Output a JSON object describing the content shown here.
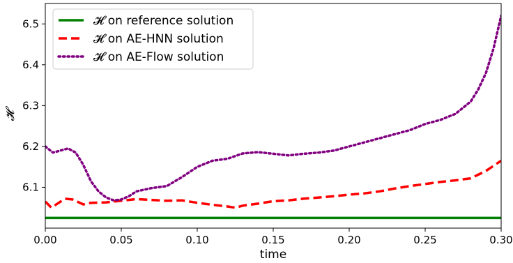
{
  "chart_data": {
    "type": "line",
    "title": "",
    "xlabel": "time",
    "ylabel": "𝓗",
    "xlim": [
      0.0,
      0.3
    ],
    "ylim": [
      6.0,
      6.55
    ],
    "xticks": [
      0.0,
      0.05,
      0.1,
      0.15,
      0.2,
      0.25,
      0.3
    ],
    "xtick_labels": [
      "0.00",
      "0.05",
      "0.10",
      "0.15",
      "0.20",
      "0.25",
      "0.30"
    ],
    "yticks": [
      6.1,
      6.2,
      6.3,
      6.4,
      6.5
    ],
    "ytick_labels": [
      "6.1",
      "6.2",
      "6.3",
      "6.4",
      "6.5"
    ],
    "grid": false,
    "legend_position": "top-left",
    "series": [
      {
        "name": "𝓗 on reference solution",
        "color": "#008000",
        "style": "solid",
        "x": [
          0.0,
          0.3
        ],
        "y": [
          6.025,
          6.025
        ]
      },
      {
        "name": "𝓗 on AE-HNN solution",
        "color": "#ff0000",
        "style": "dashed",
        "x": [
          0.0,
          0.004,
          0.008,
          0.013,
          0.018,
          0.025,
          0.03,
          0.04,
          0.05,
          0.06,
          0.07,
          0.08,
          0.09,
          0.1,
          0.11,
          0.12,
          0.125,
          0.13,
          0.14,
          0.15,
          0.16,
          0.17,
          0.18,
          0.19,
          0.2,
          0.21,
          0.22,
          0.23,
          0.24,
          0.25,
          0.26,
          0.27,
          0.28,
          0.29,
          0.3
        ],
        "y": [
          6.065,
          6.05,
          6.06,
          6.072,
          6.07,
          6.058,
          6.062,
          6.063,
          6.067,
          6.071,
          6.069,
          6.067,
          6.068,
          6.062,
          6.057,
          6.053,
          6.05,
          6.055,
          6.06,
          6.066,
          6.068,
          6.072,
          6.075,
          6.078,
          6.082,
          6.085,
          6.09,
          6.097,
          6.103,
          6.108,
          6.113,
          6.117,
          6.122,
          6.14,
          6.165
        ]
      },
      {
        "name": "𝓗 on AE-Flow solution",
        "color": "#800080",
        "style": "dotted",
        "x": [
          0.0,
          0.005,
          0.01,
          0.015,
          0.02,
          0.025,
          0.03,
          0.035,
          0.04,
          0.045,
          0.05,
          0.055,
          0.06,
          0.07,
          0.08,
          0.09,
          0.1,
          0.11,
          0.12,
          0.13,
          0.14,
          0.15,
          0.16,
          0.17,
          0.18,
          0.19,
          0.2,
          0.21,
          0.22,
          0.23,
          0.24,
          0.25,
          0.26,
          0.27,
          0.28,
          0.285,
          0.29,
          0.295,
          0.3
        ],
        "y": [
          6.2,
          6.185,
          6.19,
          6.195,
          6.185,
          6.155,
          6.115,
          6.09,
          6.075,
          6.068,
          6.07,
          6.078,
          6.09,
          6.098,
          6.103,
          6.125,
          6.15,
          6.165,
          6.17,
          6.183,
          6.186,
          6.182,
          6.178,
          6.182,
          6.185,
          6.19,
          6.2,
          6.21,
          6.22,
          6.23,
          6.24,
          6.255,
          6.265,
          6.28,
          6.31,
          6.34,
          6.38,
          6.44,
          6.52
        ]
      }
    ]
  }
}
